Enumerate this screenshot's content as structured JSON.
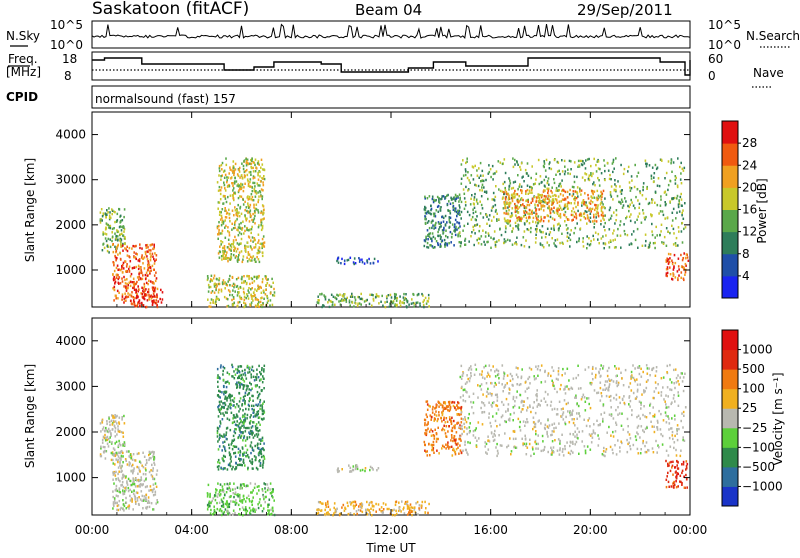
{
  "header": {
    "station": "Saskatoon (fitACF)",
    "beam": "Beam 04",
    "date": "29/Sep/2011"
  },
  "strip": {
    "nsky_label": "N.Sky",
    "nsearch_label": "N.Search",
    "nsky_ticks": [
      "10^5",
      "10^0"
    ],
    "nsearch_ticks": [
      "10^5",
      "10^0"
    ],
    "freq_label_line1": "Freq.",
    "freq_label_line2": "[MHz]",
    "freq_ticks": [
      "18",
      "8"
    ],
    "nave_label": "Nave",
    "nave_ticks": [
      "60",
      "0"
    ],
    "cpid_label": "CPID",
    "cpid_text": "normalsound (fast) 157"
  },
  "chart_data": [
    {
      "type": "heatmap",
      "title": "",
      "xlabel": "Time UT",
      "ylabel": "Slant Range [km]",
      "x_ticks": [
        "00:00",
        "04:00",
        "08:00",
        "12:00",
        "16:00",
        "20:00",
        "00:00"
      ],
      "xlim_hours": [
        0,
        24
      ],
      "y_ticks": [
        "1000",
        "2000",
        "3000",
        "4000"
      ],
      "ylim": [
        180,
        4500
      ],
      "colorbar": {
        "label": "Power [dB]",
        "ticks": [
          "4",
          "8",
          "12",
          "16",
          "20",
          "24",
          "28"
        ],
        "range": [
          0,
          30
        ],
        "colors": [
          "#1a24f0",
          "#1f4fa8",
          "#2e7d5a",
          "#5aa84a",
          "#c8c82a",
          "#f0a020",
          "#f05a10",
          "#e01010"
        ]
      },
      "scatter_regions": [
        {
          "t0": 0.3,
          "t1": 1.3,
          "r0": 1400,
          "r1": 2400,
          "level": 3
        },
        {
          "t0": 0.8,
          "t1": 2.6,
          "r0": 300,
          "r1": 1600,
          "level": 6
        },
        {
          "t0": 1.5,
          "t1": 2.8,
          "r0": 200,
          "r1": 600,
          "level": 7
        },
        {
          "t0": 4.6,
          "t1": 7.3,
          "r0": 200,
          "r1": 900,
          "level": 4
        },
        {
          "t0": 5.0,
          "t1": 6.9,
          "r0": 1200,
          "r1": 3500,
          "level": 4
        },
        {
          "t0": 9.0,
          "t1": 13.5,
          "r0": 200,
          "r1": 500,
          "level": 3
        },
        {
          "t0": 9.8,
          "t1": 11.5,
          "r0": 1150,
          "r1": 1300,
          "level": 1
        },
        {
          "t0": 13.3,
          "t1": 14.8,
          "r0": 1500,
          "r1": 2700,
          "level": 2
        },
        {
          "t0": 14.7,
          "t1": 23.8,
          "r0": 1500,
          "r1": 3500,
          "level": 3
        },
        {
          "t0": 16.5,
          "t1": 20.5,
          "r0": 2100,
          "r1": 2800,
          "level": 5
        },
        {
          "t0": 23.0,
          "t1": 23.9,
          "r0": 800,
          "r1": 1400,
          "level": 6
        }
      ]
    },
    {
      "type": "heatmap",
      "title": "",
      "xlabel": "Time UT",
      "ylabel": "Slant Range [km]",
      "x_ticks": [
        "00:00",
        "04:00",
        "08:00",
        "12:00",
        "16:00",
        "20:00",
        "00:00"
      ],
      "xlim_hours": [
        0,
        24
      ],
      "y_ticks": [
        "1000",
        "2000",
        "3000",
        "4000"
      ],
      "ylim": [
        180,
        4500
      ],
      "colorbar": {
        "label": "Velocity [m s⁻¹]",
        "ticks": [
          "1000",
          "500",
          "100",
          "25",
          "−25",
          "−100",
          "−500",
          "−1000"
        ],
        "range": [
          -1000,
          1000
        ],
        "colors": [
          "#1a34c8",
          "#2e6e9e",
          "#2f8a4a",
          "#5ccf3a",
          "#b8b8b0",
          "#f0b020",
          "#f07a10",
          "#e02a10",
          "#e01010"
        ]
      },
      "scatter_regions": [
        {
          "t0": 0.3,
          "t1": 1.3,
          "r0": 1400,
          "r1": 2400,
          "level": 4
        },
        {
          "t0": 0.8,
          "t1": 2.6,
          "r0": 300,
          "r1": 1600,
          "level": 4
        },
        {
          "t0": 4.6,
          "t1": 7.3,
          "r0": 200,
          "r1": 900,
          "level": 3
        },
        {
          "t0": 5.0,
          "t1": 6.9,
          "r0": 1200,
          "r1": 3500,
          "level": 2
        },
        {
          "t0": 9.0,
          "t1": 13.5,
          "r0": 200,
          "r1": 500,
          "level": 5
        },
        {
          "t0": 9.8,
          "t1": 11.5,
          "r0": 1150,
          "r1": 1300,
          "level": 4
        },
        {
          "t0": 13.3,
          "t1": 14.8,
          "r0": 1500,
          "r1": 2700,
          "level": 6
        },
        {
          "t0": 14.7,
          "t1": 23.8,
          "r0": 1500,
          "r1": 3500,
          "level": 4
        },
        {
          "t0": 23.0,
          "t1": 23.9,
          "r0": 800,
          "r1": 1400,
          "level": 7
        }
      ]
    }
  ]
}
